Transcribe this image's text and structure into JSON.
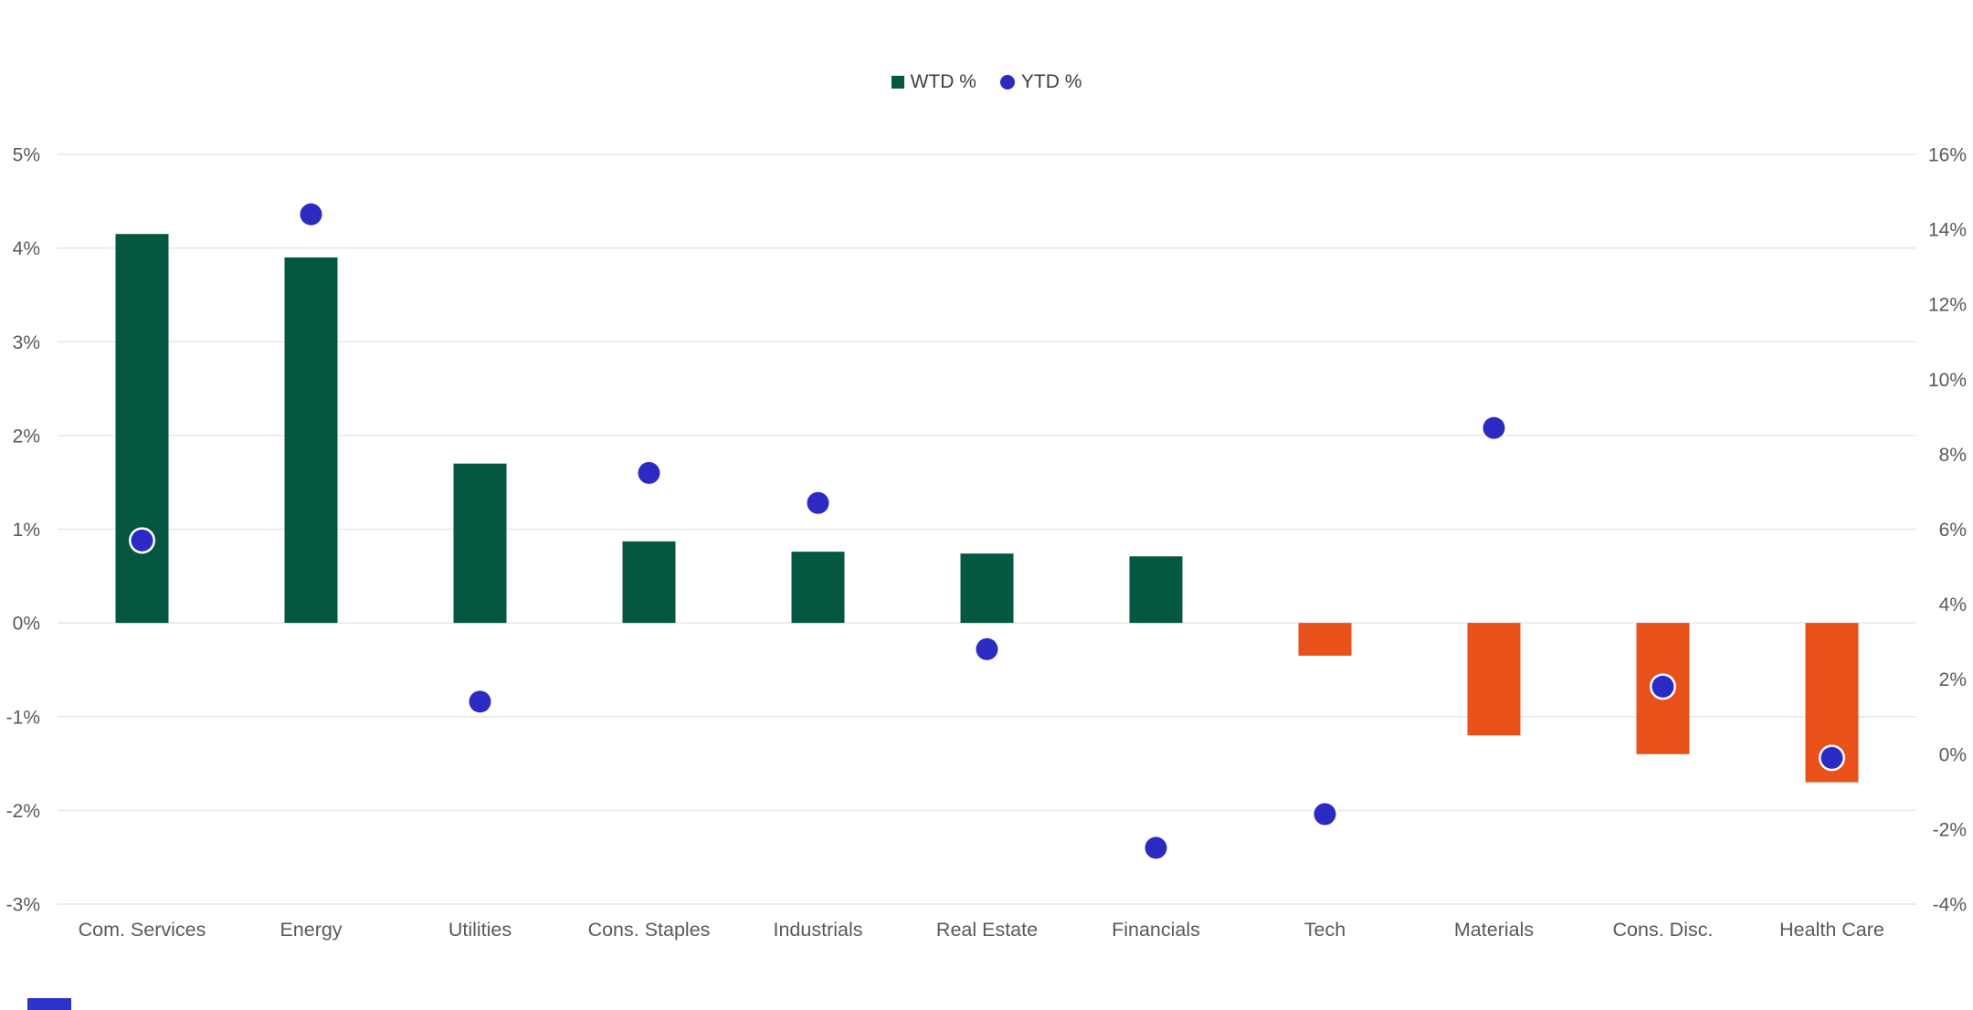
{
  "legend": {
    "items": [
      {
        "label": "WTD %",
        "marker": "square"
      },
      {
        "label": "YTD %",
        "marker": "circle"
      }
    ]
  },
  "colors": {
    "bar_positive": "#045741",
    "bar_negative": "#E8511A",
    "dot": "#2B2BC4",
    "dot_ring": "#FFFFFF",
    "gridline": "#E7E7E7",
    "axis_text": "#595959",
    "legend_text": "#3F3F3F",
    "bottom_strip": "#2B33C8"
  },
  "chart_data": {
    "type": "bar",
    "subtype": "dual-axis bar + scatter",
    "categories": [
      "Com. Services",
      "Energy",
      "Utilities",
      "Cons. Staples",
      "Industrials",
      "Real Estate",
      "Financials",
      "Tech",
      "Materials",
      "Cons. Disc.",
      "Health Care"
    ],
    "series": [
      {
        "name": "WTD %",
        "type": "bar",
        "axis": "left",
        "values": [
          4.15,
          3.9,
          1.7,
          0.87,
          0.76,
          0.74,
          0.71,
          -0.35,
          -1.2,
          -1.4,
          -1.7
        ]
      },
      {
        "name": "YTD %",
        "type": "scatter",
        "axis": "right",
        "values": [
          5.7,
          14.4,
          1.4,
          7.5,
          6.7,
          2.8,
          -2.5,
          -1.6,
          8.7,
          1.8,
          -0.1
        ]
      }
    ],
    "left_axis": {
      "min": -3,
      "max": 5,
      "step": 1,
      "suffix": "%",
      "labels": [
        "5%",
        "4%",
        "3%",
        "2%",
        "1%",
        "0%",
        "-1%",
        "-2%",
        "-3%"
      ]
    },
    "right_axis": {
      "min": -4,
      "max": 16,
      "step": 2,
      "suffix": "%",
      "labels": [
        "16%",
        "14%",
        "12%",
        "10%",
        "8%",
        "6%",
        "4%",
        "2%",
        "0%",
        "-2%",
        "-4%"
      ]
    },
    "grid": "horizontal",
    "legend_position": "top-center",
    "title": "",
    "xlabel": "",
    "ylabel": ""
  }
}
